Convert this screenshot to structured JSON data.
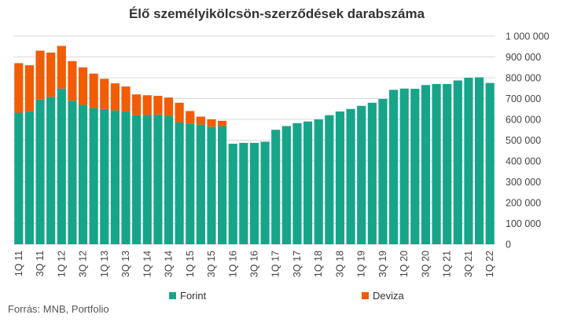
{
  "chart_data": {
    "type": "bar",
    "stacked": true,
    "title": "Élő személyikölcsön-szerződések darabszáma",
    "source": "Forrás: MNB, Portfolio",
    "ylim": [
      0,
      1000000
    ],
    "yticks": [
      0,
      100000,
      200000,
      300000,
      400000,
      500000,
      600000,
      700000,
      800000,
      900000,
      1000000
    ],
    "ytick_labels": [
      "0",
      "100 000",
      "200 000",
      "300 000",
      "400 000",
      "500 000",
      "600 000",
      "700 000",
      "800 000",
      "900 000",
      "1 000 000"
    ],
    "grid": true,
    "legend_position": "bottom",
    "categories": [
      "1Q 11",
      "2Q 11",
      "3Q 11",
      "4Q 11",
      "1Q 12",
      "2Q 12",
      "3Q 12",
      "4Q 12",
      "1Q 13",
      "2Q 13",
      "3Q 13",
      "4Q 13",
      "1Q 14",
      "2Q 14",
      "3Q 14",
      "4Q 14",
      "1Q 15",
      "2Q 15",
      "3Q 15",
      "4Q 15",
      "1Q 16",
      "2Q 16",
      "3Q 16",
      "4Q 16",
      "1Q 17",
      "2Q 17",
      "3Q 17",
      "4Q 17",
      "1Q 18",
      "2Q 18",
      "3Q 18",
      "4Q 18",
      "1Q 19",
      "2Q 19",
      "3Q 19",
      "4Q 19",
      "1Q 20",
      "2Q 20",
      "3Q 20",
      "4Q 20",
      "1Q 21",
      "2Q 21",
      "3Q 21",
      "4Q 21",
      "1Q 22"
    ],
    "xtick_labels": [
      "1Q 11",
      "3Q 11",
      "1Q 12",
      "3Q 12",
      "1Q 13",
      "3Q 13",
      "1Q 14",
      "3Q 14",
      "1Q 15",
      "3Q 15",
      "1Q 16",
      "3Q 16",
      "1Q 17",
      "3Q 17",
      "1Q 18",
      "3Q 18",
      "1Q 19",
      "3Q 19",
      "1Q 20",
      "3Q 20",
      "1Q 21",
      "3Q 21",
      "1Q 22"
    ],
    "series": [
      {
        "name": "Forint",
        "color": "#17a589",
        "values": [
          632000,
          638000,
          695000,
          708000,
          748000,
          690000,
          670000,
          655000,
          650000,
          643000,
          638000,
          620000,
          621000,
          623000,
          615000,
          585000,
          580000,
          575000,
          565000,
          568000,
          483000,
          487000,
          487000,
          493000,
          550000,
          568000,
          582000,
          590000,
          600000,
          620000,
          638000,
          650000,
          665000,
          680000,
          698000,
          742000,
          748000,
          747000,
          765000,
          770000,
          770000,
          787000,
          800000,
          802000,
          775000
        ]
      },
      {
        "name": "Deviza",
        "color": "#f25c05",
        "values": [
          238000,
          222000,
          235000,
          213000,
          205000,
          190000,
          180000,
          165000,
          145000,
          130000,
          120000,
          100000,
          95000,
          90000,
          90000,
          95000,
          60000,
          38000,
          35000,
          25000,
          0,
          0,
          0,
          0,
          0,
          0,
          0,
          0,
          0,
          0,
          0,
          0,
          0,
          0,
          0,
          0,
          0,
          0,
          0,
          0,
          0,
          0,
          0,
          0,
          0
        ]
      }
    ]
  }
}
